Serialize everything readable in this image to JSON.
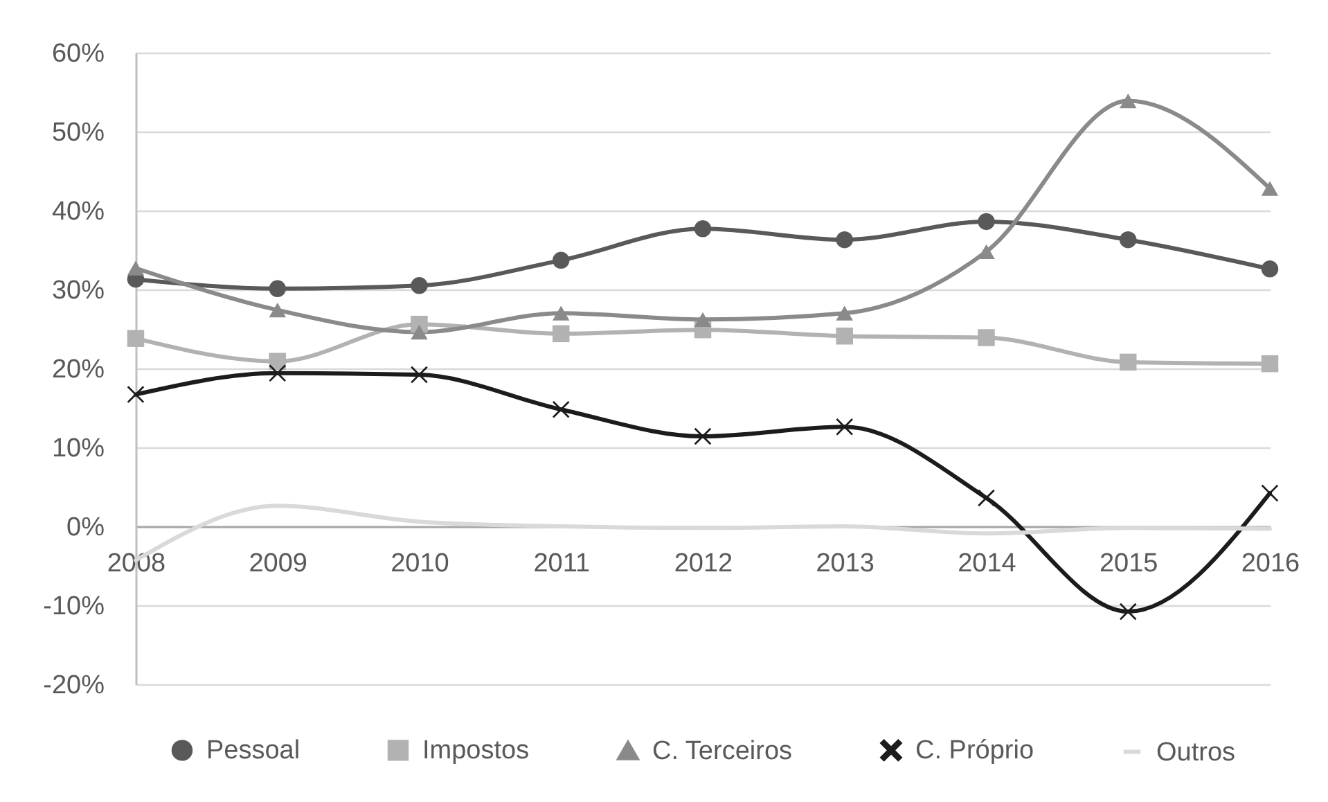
{
  "chart_data": {
    "type": "line",
    "categories": [
      "2008",
      "2009",
      "2010",
      "2011",
      "2012",
      "2013",
      "2014",
      "2015",
      "2016"
    ],
    "series": [
      {
        "name": "Pessoal",
        "color": "#595959",
        "marker": "circle",
        "values": [
          31.3,
          30.1,
          30.5,
          33.7,
          37.7,
          36.3,
          38.6,
          36.3,
          32.6
        ]
      },
      {
        "name": "Impostos",
        "color": "#b2b2b2",
        "marker": "square",
        "values": [
          23.8,
          20.9,
          25.6,
          24.4,
          24.9,
          24.1,
          23.9,
          20.8,
          20.6
        ]
      },
      {
        "name": "C. Terceiros",
        "color": "#8a8a8a",
        "marker": "triangle",
        "values": [
          32.7,
          27.4,
          24.6,
          27.0,
          26.2,
          27.0,
          34.8,
          53.9,
          42.8
        ]
      },
      {
        "name": "C. Próprio",
        "color": "#1c1c1c",
        "marker": "cross",
        "values": [
          16.7,
          19.4,
          19.2,
          14.8,
          11.4,
          12.6,
          3.6,
          -10.8,
          4.2
        ]
      },
      {
        "name": "Outros",
        "color": "#d9d9d9",
        "marker": "none",
        "values": [
          -4.3,
          2.6,
          0.6,
          0.0,
          -0.2,
          0.0,
          -0.9,
          -0.2,
          -0.3
        ]
      }
    ],
    "ylim": [
      -20,
      60
    ],
    "yticks": [
      {
        "value": -20,
        "label": "-20%"
      },
      {
        "value": -10,
        "label": "-10%"
      },
      {
        "value": 0,
        "label": "0%"
      },
      {
        "value": 10,
        "label": "10%"
      },
      {
        "value": 20,
        "label": "20%"
      },
      {
        "value": 30,
        "label": "30%"
      },
      {
        "value": 40,
        "label": "40%"
      },
      {
        "value": 50,
        "label": "50%"
      },
      {
        "value": 60,
        "label": "60%"
      }
    ],
    "grid": "y",
    "legend": "bottom"
  }
}
